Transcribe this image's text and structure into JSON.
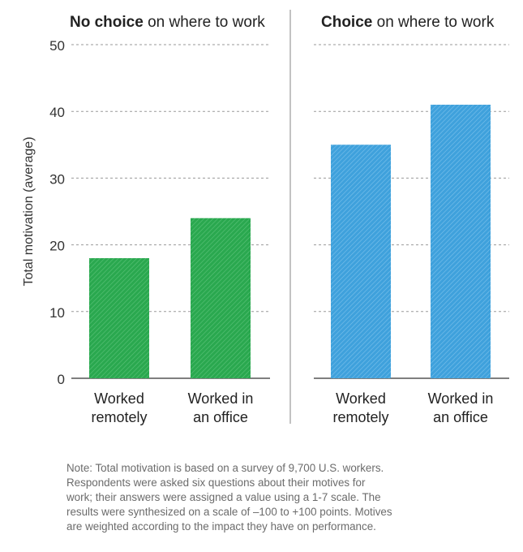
{
  "chart_data": {
    "type": "bar",
    "ylabel": "Total motivation (average)",
    "ylim": [
      0,
      50
    ],
    "yticks": [
      0,
      10,
      20,
      30,
      40,
      50
    ],
    "categories": [
      "Worked\nremotely",
      "Worked in\nan office"
    ],
    "panels": [
      {
        "title_bold": "No choice",
        "title_rest": " on where to work",
        "values": [
          18,
          24
        ],
        "color": "#2aa84f"
      },
      {
        "title_bold": "Choice",
        "title_rest": " on where to work",
        "values": [
          35,
          41
        ],
        "color": "#3fa1dc"
      }
    ],
    "grid": true
  },
  "note": {
    "lines": [
      "Note: Total motivation is based on a survey of 9,700 U.S. workers.",
      "Respondents were asked six questions about their motives for",
      "work; their answers were assigned a value using a 1-7 scale. The",
      "results were synthesized on a scale of –100 to +100 points. Motives",
      "are weighted according to the impact they have on performance."
    ]
  }
}
